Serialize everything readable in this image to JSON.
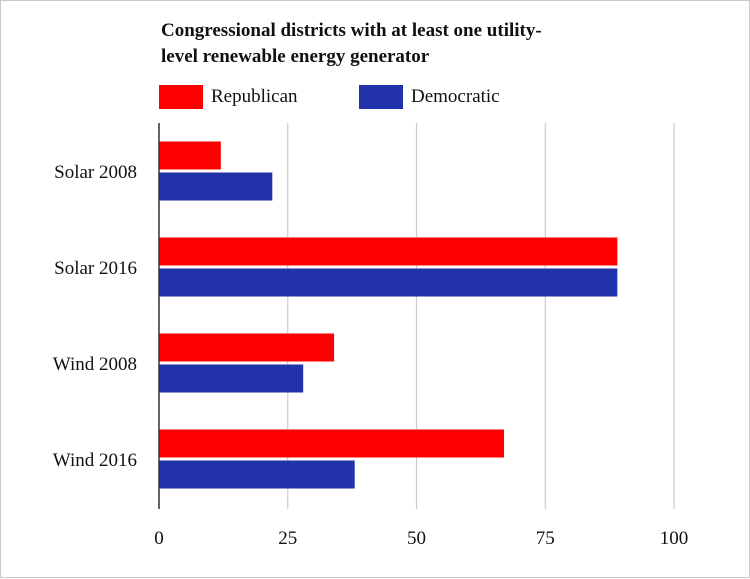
{
  "chart_data": {
    "type": "bar",
    "orientation": "horizontal",
    "title": "Congressional districts with at least one utility-level renewable energy generator",
    "title_lines": [
      "Congressional districts with at least one utility-",
      "level renewable energy generator"
    ],
    "categories": [
      "Solar 2008",
      "Solar 2016",
      "Wind 2008",
      "Wind 2016"
    ],
    "series": [
      {
        "name": "Republican",
        "color": "#ff0000",
        "values": [
          12,
          89,
          34,
          67
        ]
      },
      {
        "name": "Democratic",
        "color": "#2233aa",
        "values": [
          22,
          89,
          28,
          38
        ]
      }
    ],
    "xlim": [
      0,
      100
    ],
    "xticks": [
      0,
      25,
      50,
      75,
      100
    ],
    "grid": true,
    "legend_position": "top-left",
    "xlabel": "",
    "ylabel": ""
  }
}
